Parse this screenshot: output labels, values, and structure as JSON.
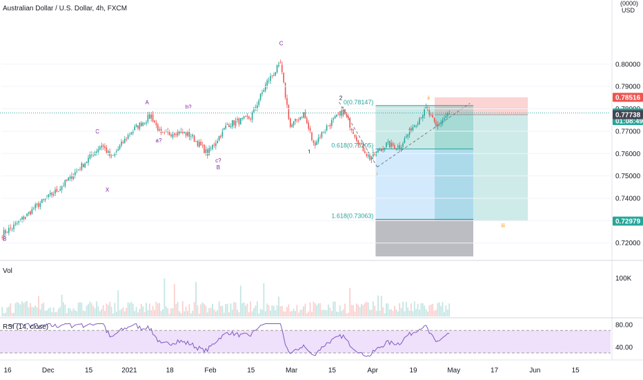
{
  "header": {
    "title": "Australian Dollar / U.S. Dollar, 4h, FXCM",
    "currency_line1": "(0000)",
    "currency_line2": "USD"
  },
  "colors": {
    "up": "#26a69a",
    "down": "#ef5350",
    "wave_label": "#7b1fa2",
    "orange_label": "#ff9800",
    "rsi_line": "#7e57c2",
    "rsi_band": "#efe0fb",
    "fib": "#26a69a",
    "price_tag_red": "#ef5350",
    "price_tag_green": "#26a69a",
    "price_tag_gray": "#434651"
  },
  "chart_data": [
    {
      "type": "candlestick",
      "name": "price",
      "x_axis": {
        "tick_labels": [
          "16",
          "Dec",
          "15",
          "2021",
          "18",
          "Feb",
          "15",
          "Mar",
          "15",
          "Apr",
          "19",
          "May",
          "17",
          "Jun",
          "15"
        ]
      },
      "y_axis": {
        "range": [
          0.7125,
          0.8225
        ],
        "tick_labels": [
          "0.80000",
          "0.79000",
          "0.78000",
          "0.77000",
          "0.76000",
          "0.75000",
          "0.74000",
          "0.73000",
          "0.72000"
        ]
      },
      "anchors": [
        {
          "bar": 0,
          "price": 0.724
        },
        {
          "bar": 8,
          "price": 0.728
        },
        {
          "bar": 20,
          "price": 0.736
        },
        {
          "bar": 34,
          "price": 0.744
        },
        {
          "bar": 50,
          "price": 0.756
        },
        {
          "bar": 60,
          "price": 0.764
        },
        {
          "bar": 66,
          "price": 0.758
        },
        {
          "bar": 78,
          "price": 0.77
        },
        {
          "bar": 90,
          "price": 0.777
        },
        {
          "bar": 96,
          "price": 0.768
        },
        {
          "bar": 106,
          "price": 0.77
        },
        {
          "bar": 114,
          "price": 0.768
        },
        {
          "bar": 124,
          "price": 0.76
        },
        {
          "bar": 136,
          "price": 0.773
        },
        {
          "bar": 150,
          "price": 0.776
        },
        {
          "bar": 160,
          "price": 0.792
        },
        {
          "bar": 168,
          "price": 0.8
        },
        {
          "bar": 174,
          "price": 0.772
        },
        {
          "bar": 182,
          "price": 0.778
        },
        {
          "bar": 188,
          "price": 0.764
        },
        {
          "bar": 196,
          "price": 0.772
        },
        {
          "bar": 206,
          "price": 0.779
        },
        {
          "bar": 216,
          "price": 0.764
        },
        {
          "bar": 222,
          "price": 0.758
        },
        {
          "bar": 232,
          "price": 0.764
        },
        {
          "bar": 240,
          "price": 0.763
        },
        {
          "bar": 248,
          "price": 0.772
        },
        {
          "bar": 256,
          "price": 0.78
        },
        {
          "bar": 262,
          "price": 0.772
        },
        {
          "bar": 270,
          "price": 0.7782
        }
      ],
      "last_price": 0.77816,
      "price_tags": [
        {
          "label": "0.78516",
          "value": 0.78516,
          "kind": "red"
        },
        {
          "label": "0.77816",
          "value": 0.77816,
          "kind": "green",
          "countdown": "01:08:49"
        },
        {
          "label": "0.77738",
          "value": 0.77738,
          "kind": "gray"
        },
        {
          "label": "0.72979",
          "value": 0.72979,
          "kind": "green"
        }
      ],
      "fib_levels": [
        {
          "label": "0(0.78147)",
          "value": 0.78147
        },
        {
          "label": "0.618(0.76205)",
          "value": 0.76205
        },
        {
          "label": "1.618(0.73063)",
          "value": 0.73063
        }
      ],
      "wave_labels": [
        {
          "text": "B",
          "bar": 2,
          "price": 0.721
        },
        {
          "text": "C",
          "bar": 58,
          "price": 0.769
        },
        {
          "text": "X",
          "bar": 64,
          "price": 0.743
        },
        {
          "text": "A",
          "bar": 88,
          "price": 0.782
        },
        {
          "text": "a?",
          "bar": 95,
          "price": 0.765
        },
        {
          "text": "b?",
          "bar": 113,
          "price": 0.78
        },
        {
          "text": "c?",
          "bar": 131,
          "price": 0.756
        },
        {
          "text": "B",
          "bar": 131,
          "price": 0.753
        },
        {
          "text": "C",
          "bar": 169,
          "price": 0.8085
        },
        {
          "text": "2",
          "bar": 205,
          "price": 0.784
        },
        {
          "text": "1",
          "bar": 186,
          "price": 0.76
        },
        {
          "text": "ii",
          "bar": 258,
          "price": 0.784
        },
        {
          "text": "i",
          "bar": 227,
          "price": 0.75
        },
        {
          "text": "iii",
          "bar": 303,
          "price": 0.727
        }
      ]
    },
    {
      "type": "bar",
      "name": "Vol",
      "title": "Vol",
      "y_axis": {
        "tick_labels": [
          "100K"
        ]
      }
    },
    {
      "type": "line",
      "name": "RSI",
      "title": "RSI (14, close)",
      "y_axis": {
        "range": [
          20,
          90
        ],
        "tick_labels": [
          "80.00",
          "40.00"
        ]
      },
      "band": [
        30,
        70
      ]
    }
  ]
}
